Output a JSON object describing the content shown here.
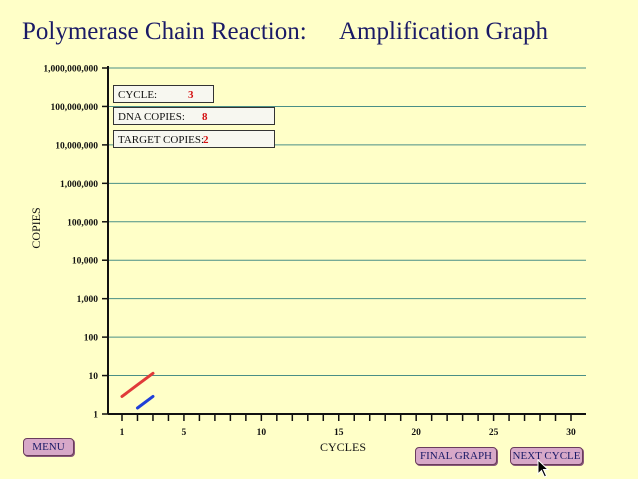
{
  "title": {
    "left": "Polymerase Chain Reaction:",
    "right": "Amplification Graph"
  },
  "info": {
    "cycle_label": "CYCLE:",
    "cycle_value": "3",
    "dna_label": "DNA COPIES:",
    "dna_value": "8",
    "target_label": "TARGET COPIES:",
    "target_value": "2"
  },
  "buttons": {
    "menu": "MENU",
    "final_graph": "FINAL GRAPH",
    "next_cycle": "NEXT CYCLE"
  },
  "chart_data": {
    "type": "line",
    "xlabel": "CYCLES",
    "ylabel": "COPIES",
    "xlim": [
      1,
      30
    ],
    "ylim": [
      1,
      1000000000
    ],
    "y_scale": "log",
    "x_tick_labels": [
      "1",
      "5",
      "10",
      "15",
      "20",
      "25",
      "30"
    ],
    "x_tick_values": [
      1,
      5,
      10,
      15,
      20,
      25,
      30
    ],
    "y_tick_labels": [
      "1",
      "10",
      "100",
      "1,000",
      "10,000",
      "100,000",
      "1,000,000",
      "10,000,000",
      "100,000,000",
      "1,000,000,000"
    ],
    "grid": true,
    "series": [
      {
        "color": "#e03a3a",
        "x": [
          1,
          2,
          3
        ],
        "y": [
          2,
          4,
          8
        ]
      },
      {
        "color": "#1f3fd8",
        "x": [
          2,
          3
        ],
        "y": [
          1,
          2
        ]
      }
    ],
    "colors": {
      "grid": "#4a8f86",
      "axis": "#111111"
    }
  }
}
